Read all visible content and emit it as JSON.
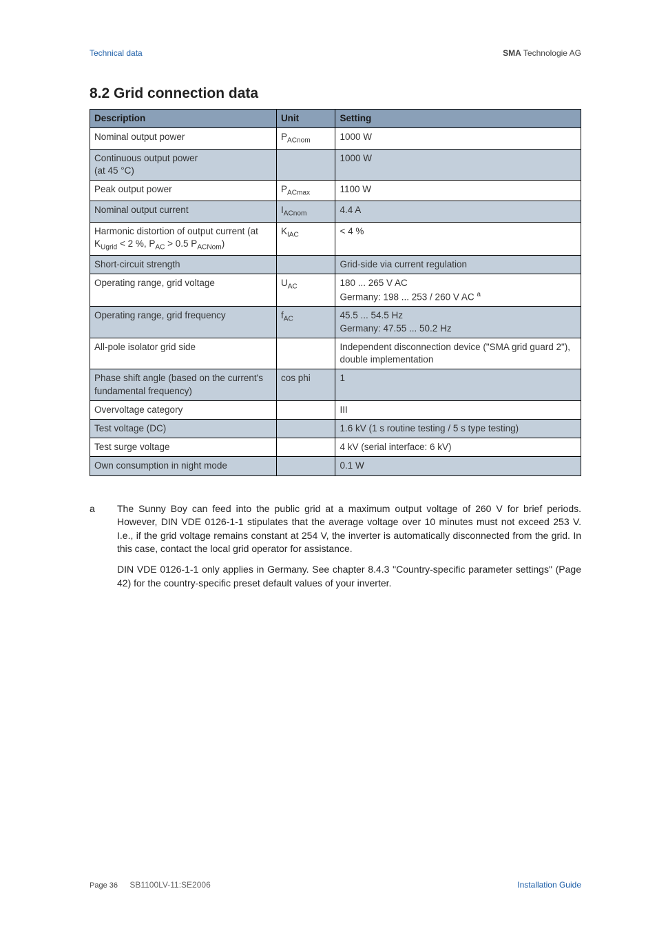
{
  "header": {
    "left": "Technical data",
    "right_bold": "SMA",
    "right_rest": " Technologie AG"
  },
  "section_title": "8.2 Grid connection data",
  "table": {
    "headers": {
      "c1": "Description",
      "c2": "Unit",
      "c3": "Setting"
    },
    "rows": [
      {
        "shade": false,
        "desc_html": "Nominal output power",
        "unit_html": "P<sub>ACnom</sub>",
        "set_html": "1000 W"
      },
      {
        "shade": true,
        "desc_html": "Continuous output power<br>(at 45 °C)",
        "unit_html": "",
        "set_html": "1000 W"
      },
      {
        "shade": false,
        "desc_html": "Peak output power",
        "unit_html": "P<sub>ACmax</sub>",
        "set_html": "1100 W"
      },
      {
        "shade": true,
        "desc_html": "Nominal output current",
        "unit_html": "I<sub>ACnom</sub>",
        "set_html": "4.4 A"
      },
      {
        "shade": false,
        "desc_html": "Harmonic distortion of output current (at K<sub>Ugrid</sub> &lt; 2 %, P<sub>AC</sub> &gt; 0.5 P<sub>ACNom</sub>)",
        "unit_html": "K<sub>IAC</sub>",
        "set_html": "&lt; 4 %"
      },
      {
        "shade": true,
        "desc_html": "Short-circuit strength",
        "unit_html": "",
        "set_html": "Grid-side via current regulation"
      },
      {
        "shade": false,
        "desc_html": "Operating range, grid voltage",
        "unit_html": "U<sub>AC</sub>",
        "set_html": "180 ... 265 V AC<br>Germany: 198 ... 253 / 260 V AC <sup>a</sup>"
      },
      {
        "shade": true,
        "desc_html": "Operating range, grid frequency",
        "unit_html": "f<sub>AC</sub>",
        "set_html": "45.5 ... 54.5 Hz<br>Germany: 47.55 ... 50.2 Hz"
      },
      {
        "shade": false,
        "desc_html": "All-pole isolator grid side",
        "unit_html": "",
        "set_html": "Independent disconnection device (\"SMA grid guard 2\"), double implementation"
      },
      {
        "shade": true,
        "desc_html": "Phase shift angle (based on the current's fundamental frequency)",
        "unit_html": "cos phi",
        "set_html": "1"
      },
      {
        "shade": false,
        "desc_html": "Overvoltage category",
        "unit_html": "",
        "set_html": "III"
      },
      {
        "shade": true,
        "desc_html": "Test voltage (DC)",
        "unit_html": "",
        "set_html": "1.6 kV (1 s routine testing / 5 s type testing)"
      },
      {
        "shade": false,
        "desc_html": "Test surge voltage",
        "unit_html": "",
        "set_html": "4 kV (serial interface: 6 kV)"
      },
      {
        "shade": true,
        "desc_html": "Own consumption in night mode",
        "unit_html": "",
        "set_html": "0.1 W"
      }
    ]
  },
  "footnote": {
    "label": "a",
    "p1": "The Sunny Boy can feed into the public grid at a maximum output voltage of 260 V for brief periods. However, DIN VDE 0126-1-1 stipulates that the average voltage over 10 minutes must not exceed 253 V. I.e., if the grid voltage remains constant at 254 V, the inverter is automatically disconnected from the grid. In this case, contact the local grid operator for assistance.",
    "p2": "DIN VDE 0126-1-1 only applies in Germany. See chapter 8.4.3 \"Country-specific parameter settings\" (Page 42) for the country-specific preset default values of your inverter."
  },
  "footer": {
    "page_label": "Page 36",
    "doc_code": "SB1100LV-11:SE2006",
    "right": "Installation Guide"
  }
}
